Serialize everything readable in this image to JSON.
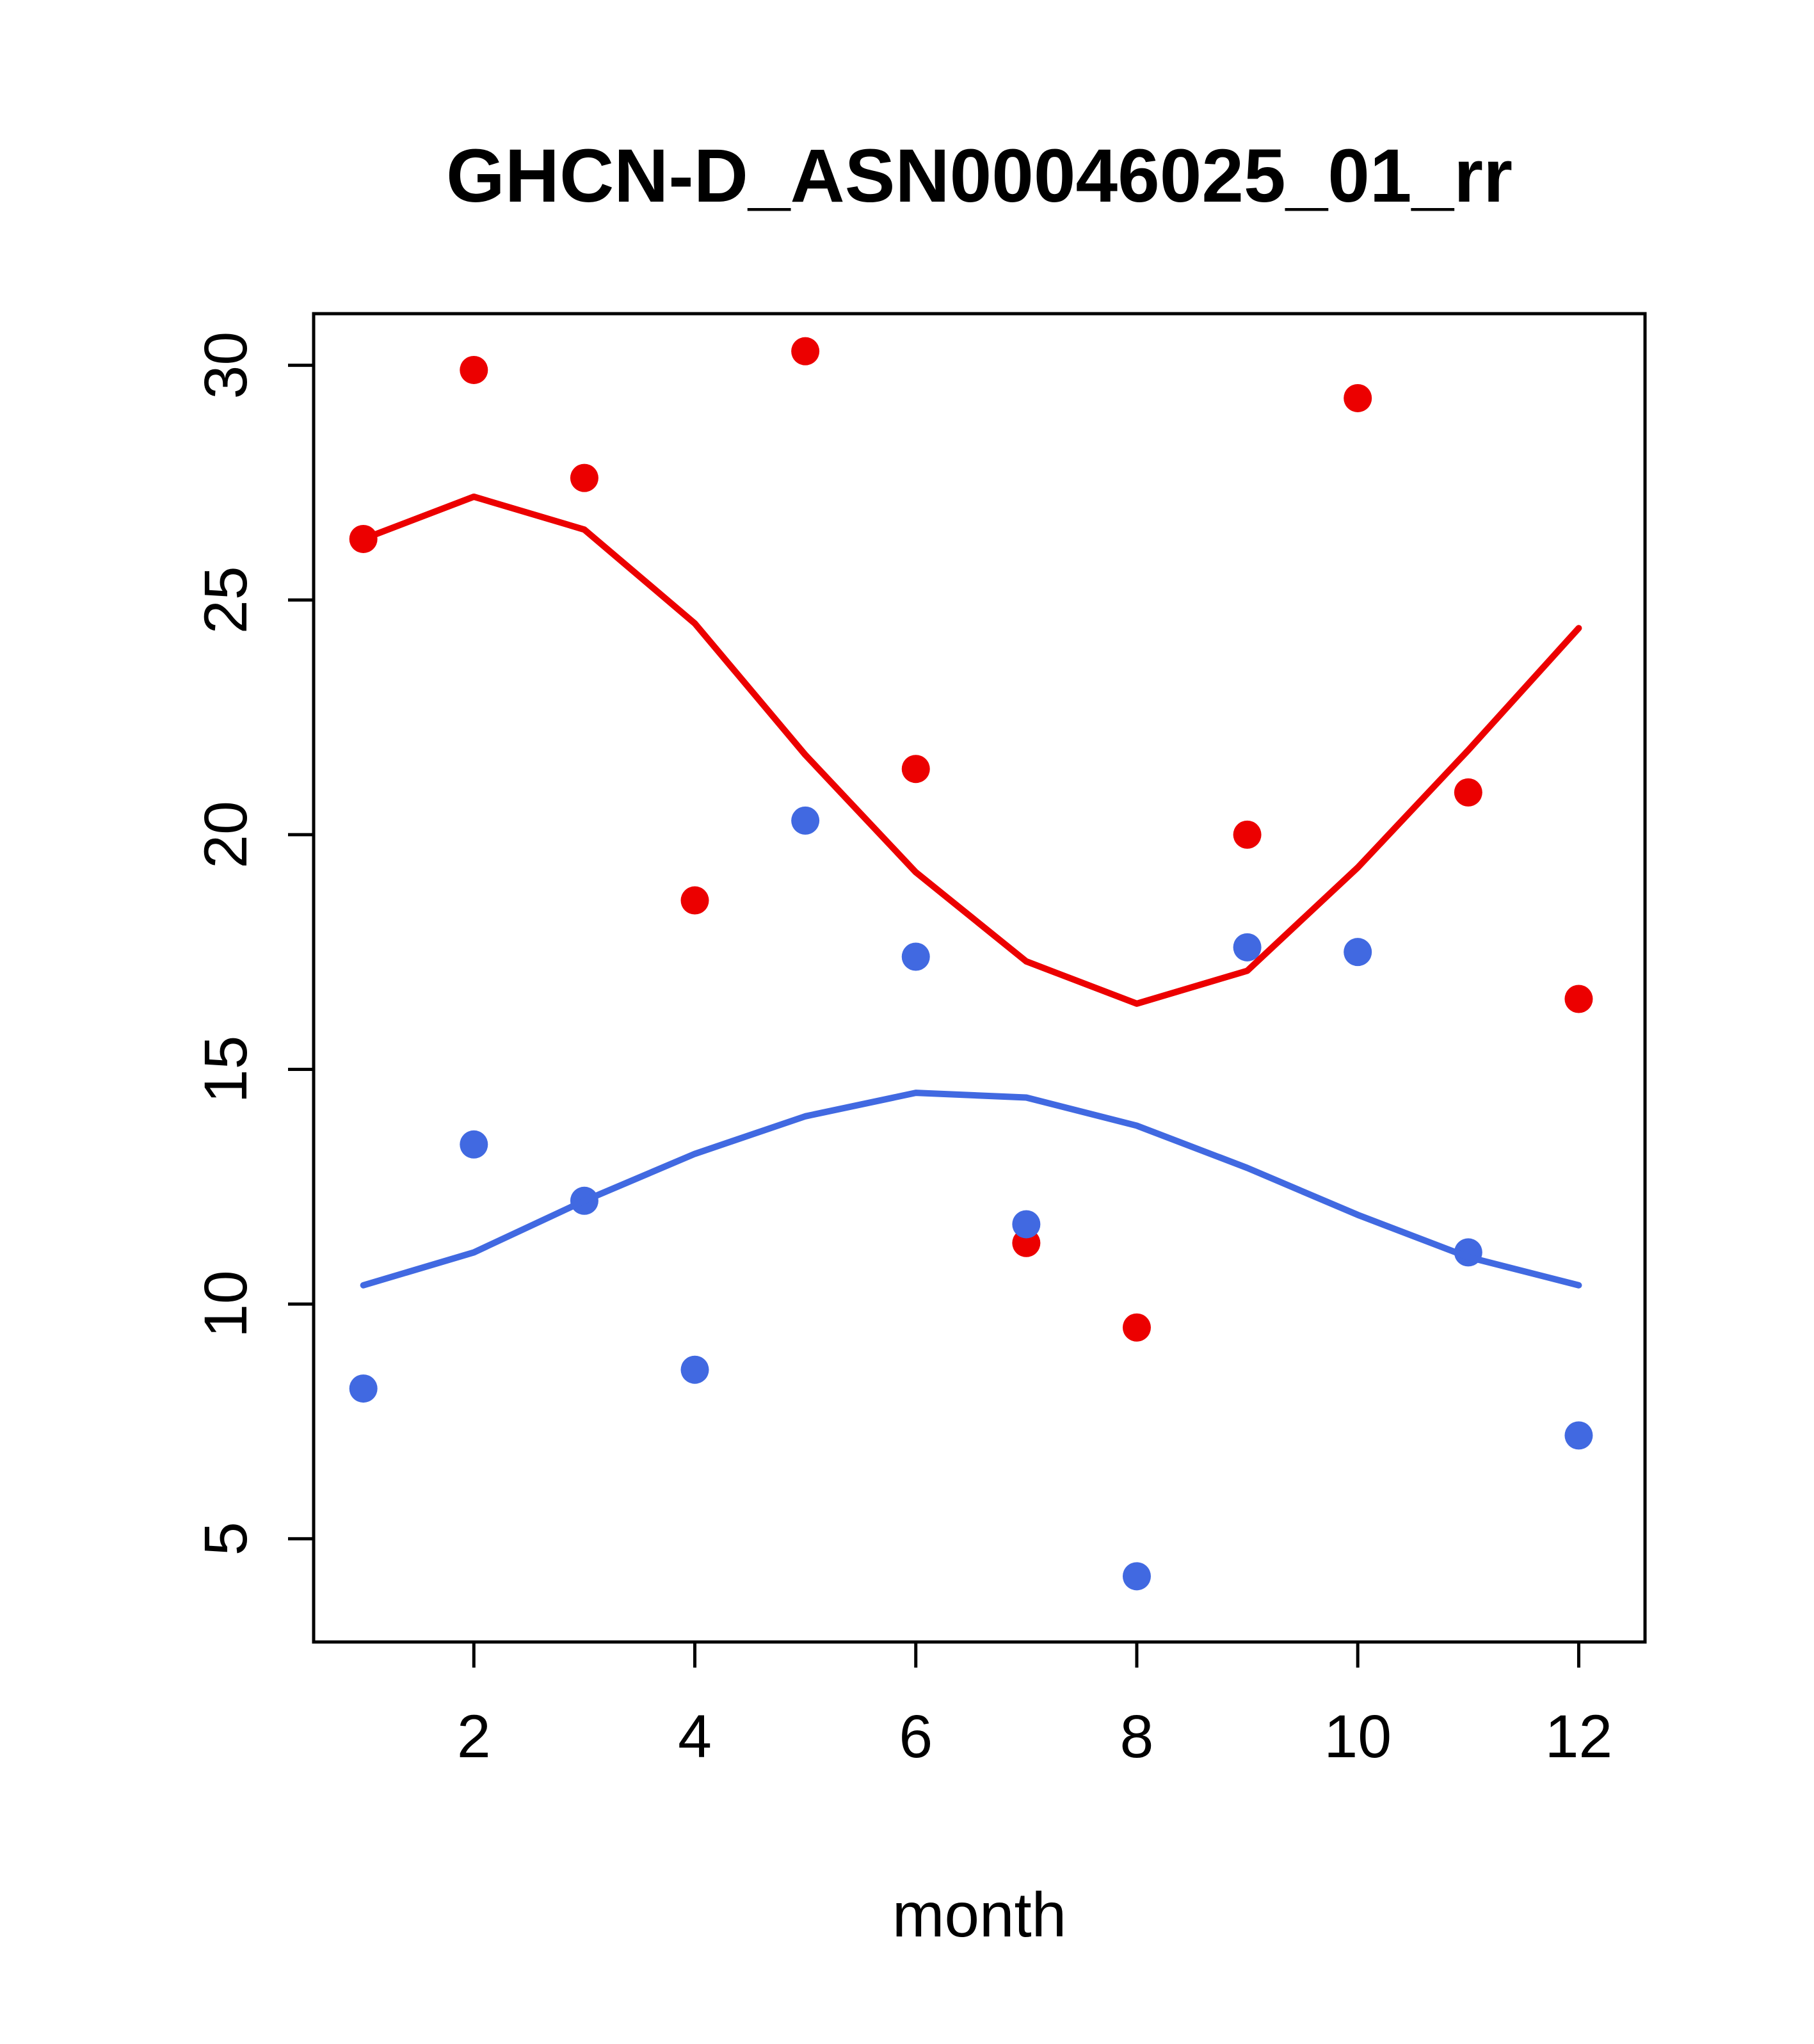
{
  "chart_data": {
    "type": "scatter",
    "title": "GHCN-D_ASN00046025_01_rr",
    "xlabel": "month",
    "ylabel": "",
    "x": [
      1,
      2,
      3,
      4,
      5,
      6,
      7,
      8,
      9,
      10,
      11,
      12
    ],
    "xlim": [
      0.55,
      12.6
    ],
    "ylim": [
      2.8,
      31.1
    ],
    "x_ticks": [
      2,
      4,
      6,
      8,
      10,
      12
    ],
    "y_ticks": [
      5,
      10,
      15,
      20,
      25,
      30
    ],
    "grid": false,
    "legend": "none",
    "colors": {
      "red_series": "#EC0000",
      "blue_series": "#4169E1",
      "axis": "#000000",
      "background": "#FFFFFF"
    },
    "series": [
      {
        "name": "red-scatter",
        "type": "points",
        "color": "#EC0000",
        "values": [
          26.3,
          29.9,
          27.6,
          18.6,
          30.3,
          21.4,
          11.3,
          9.5,
          20.0,
          29.3,
          20.9,
          16.5
        ]
      },
      {
        "name": "blue-scatter",
        "type": "points",
        "color": "#4169E1",
        "values": [
          8.2,
          13.4,
          12.2,
          8.6,
          20.3,
          17.4,
          11.7,
          4.2,
          17.6,
          17.5,
          11.1,
          7.2
        ]
      },
      {
        "name": "red-smooth",
        "type": "line",
        "color": "#EC0000",
        "values": [
          26.3,
          27.2,
          26.5,
          24.5,
          21.7,
          19.2,
          17.3,
          16.4,
          17.1,
          19.3,
          21.8,
          24.4
        ]
      },
      {
        "name": "blue-smooth",
        "type": "line",
        "color": "#4169E1",
        "values": [
          10.4,
          11.1,
          12.2,
          13.2,
          14.0,
          14.5,
          14.4,
          13.8,
          12.9,
          11.9,
          11.0,
          10.4
        ]
      }
    ]
  }
}
